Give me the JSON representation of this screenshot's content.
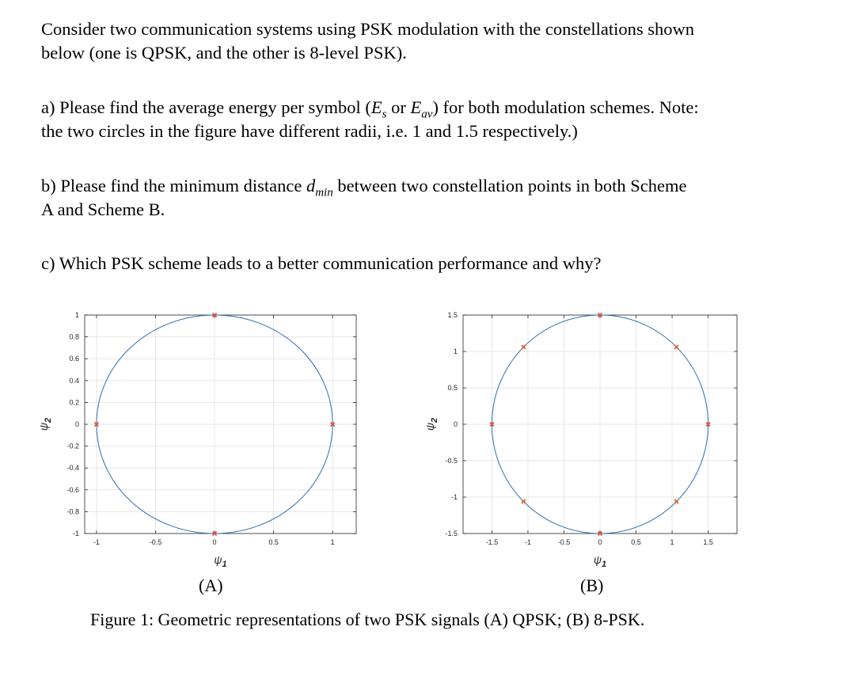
{
  "intro": {
    "line1": "Consider two communication systems using PSK modulation with the constellations shown",
    "line2": "below (one is QPSK, and the other is 8-level PSK)."
  },
  "qa": {
    "p1": "a) Please find the average energy per symbol (",
    "es_sym": "E",
    "es_sub": "s",
    "or_word": " or ",
    "eav_sym": "E",
    "eav_sub": "av",
    "p2": ") for both modulation schemes. Note:",
    "line2": "the two circles in the figure have different radii, i.e. 1 and 1.5 respectively.)"
  },
  "qb": {
    "p1": "b) Please find the minimum distance ",
    "dmin_sym": "d",
    "dmin_sub": "min",
    "p2": " between two constellation points in both Scheme",
    "line2": "A and Scheme B."
  },
  "qc": {
    "text": "c) Which PSK scheme leads to a better communication performance and why?"
  },
  "labels": {
    "panel_a": "(A)",
    "panel_b": "(B)",
    "caption": "Figure 1: Geometric representations of two PSK signals (A) QPSK; (B) 8-PSK."
  },
  "colors": {
    "circle": "#2a6db5",
    "marker": "#e0532a",
    "grid": "#e6e6e6",
    "axis": "#262626"
  },
  "chart_data": [
    {
      "type": "scatter",
      "panel": "A",
      "radius": 1,
      "xlabel": "ψ1",
      "ylabel": "ψ2",
      "xlim": [
        -1.1,
        1.2
      ],
      "ylim": [
        -1,
        1
      ],
      "xticks": [
        -1,
        -0.5,
        0,
        0.5,
        1
      ],
      "xtick_labels": [
        "-1",
        "-0.5",
        "0",
        "0.5",
        "1"
      ],
      "yticks": [
        -1,
        -0.8,
        -0.6,
        -0.4,
        -0.2,
        0,
        0.2,
        0.4,
        0.6,
        0.8,
        1
      ],
      "ytick_labels": [
        "-1",
        "-0.8",
        "-0.6",
        "-0.4",
        "-0.2",
        "0",
        "0.2",
        "0.4",
        "0.6",
        "0.8",
        "1"
      ],
      "grid": true,
      "points": [
        [
          1,
          0
        ],
        [
          0,
          1
        ],
        [
          -1,
          0
        ],
        [
          0,
          -1
        ]
      ]
    },
    {
      "type": "scatter",
      "panel": "B",
      "radius": 1.5,
      "xlabel": "ψ1",
      "ylabel": "ψ2",
      "xlim": [
        -1.9,
        1.9
      ],
      "ylim": [
        -1.5,
        1.5
      ],
      "xticks": [
        -1.5,
        -1,
        -0.5,
        0,
        0.5,
        1,
        1.5
      ],
      "xtick_labels": [
        "-1.5",
        "-1",
        "-0.5",
        "0",
        "0.5",
        "1",
        "1.5"
      ],
      "yticks": [
        -1.5,
        -1,
        -0.5,
        0,
        0.5,
        1,
        1.5
      ],
      "ytick_labels": [
        "-1.5",
        "-1",
        "-0.5",
        "0",
        "0.5",
        "1",
        "1.5"
      ],
      "grid": true,
      "points": [
        [
          1.5,
          0
        ],
        [
          1.06,
          1.06
        ],
        [
          0,
          1.5
        ],
        [
          -1.06,
          1.06
        ],
        [
          -1.5,
          0
        ],
        [
          -1.06,
          -1.06
        ],
        [
          0,
          -1.5
        ],
        [
          1.06,
          -1.06
        ]
      ]
    }
  ]
}
